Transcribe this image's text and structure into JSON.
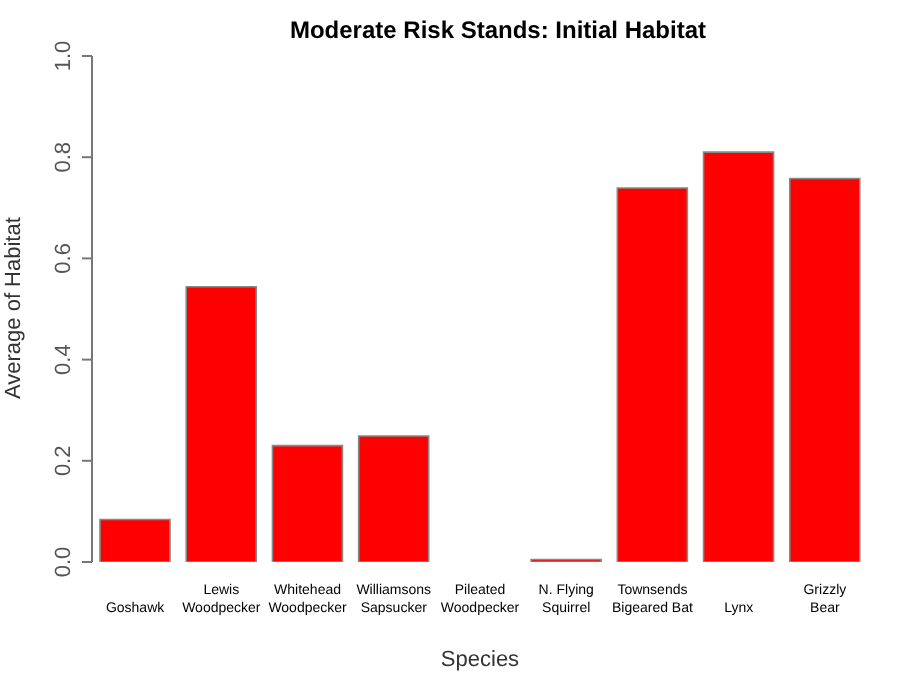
{
  "chart_data": {
    "type": "bar",
    "title": "Moderate Risk Stands: Initial Habitat",
    "xlabel": "Species",
    "ylabel": "Average of Habitat",
    "categories": [
      "Goshawk",
      "Lewis\nWoodpecker",
      "Whitehead\nWoodpecker",
      "Williamsons\nSapsucker",
      "Pileated\nWoodpecker",
      "N. Flying\nSquirrel",
      "Townsends\nBigeared Bat",
      "Lynx",
      "Grizzly\nBear"
    ],
    "values": [
      0.084,
      0.544,
      0.23,
      0.249,
      0,
      0.005,
      0.739,
      0.81,
      0.758
    ],
    "color": "#ff0000",
    "ylim": [
      0,
      1
    ],
    "yticks": [
      {
        "value": 0,
        "label": "0.0"
      },
      {
        "value": 0.2,
        "label": "0.2"
      },
      {
        "value": 0.4,
        "label": "0.4"
      },
      {
        "value": 0.6,
        "label": "0.6"
      },
      {
        "value": 0.8,
        "label": "0.8"
      },
      {
        "value": 1,
        "label": "1.0"
      }
    ],
    "grid": false,
    "legend": false
  }
}
